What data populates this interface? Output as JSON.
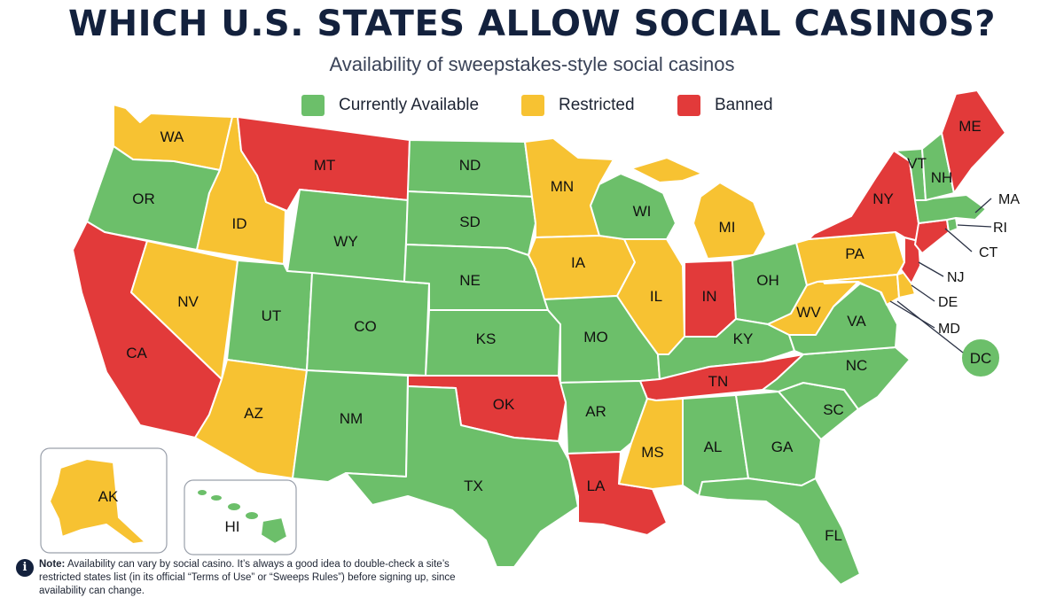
{
  "title": "WHICH U.S. STATES ALLOW SOCIAL CASINOS?",
  "subtitle": "Availability of sweepstakes-style social casinos",
  "colors": {
    "available": "#6cbf6a",
    "restricted": "#f7c232",
    "banned": "#e23a3a"
  },
  "legend": [
    {
      "status": "available",
      "label": "Currently Available"
    },
    {
      "status": "restricted",
      "label": "Restricted"
    },
    {
      "status": "banned",
      "label": "Banned"
    }
  ],
  "states": {
    "WA": "restricted",
    "OR": "available",
    "CA": "banned",
    "ID": "restricted",
    "NV": "restricted",
    "MT": "banned",
    "WY": "available",
    "UT": "available",
    "AZ": "restricted",
    "CO": "available",
    "NM": "available",
    "ND": "available",
    "SD": "available",
    "NE": "available",
    "KS": "available",
    "OK": "banned",
    "TX": "available",
    "MN": "restricted",
    "IA": "restricted",
    "MO": "available",
    "AR": "available",
    "LA": "banned",
    "WI": "available",
    "IL": "restricted",
    "MI": "restricted",
    "IN": "banned",
    "OH": "available",
    "KY": "available",
    "TN": "banned",
    "MS": "restricted",
    "AL": "available",
    "GA": "available",
    "FL": "available",
    "SC": "available",
    "NC": "available",
    "VA": "available",
    "WV": "restricted",
    "PA": "restricted",
    "NY": "banned",
    "VT": "available",
    "NH": "available",
    "ME": "banned",
    "MA": "available",
    "RI": "available",
    "CT": "banned",
    "NJ": "banned",
    "DE": "restricted",
    "MD": "restricted",
    "DC": "available",
    "AK": "restricted",
    "HI": "available"
  },
  "callouts": [
    "MA",
    "RI",
    "CT",
    "NJ",
    "DE",
    "MD",
    "DC"
  ],
  "note": {
    "icon": "info-icon",
    "bold": "Note:",
    "text": "Availability can vary by social casino. It’s always a good idea to double-check a site’s restricted states list (in its official “Terms of Use” or “Sweeps Rules”) before signing up, since availability can change."
  }
}
